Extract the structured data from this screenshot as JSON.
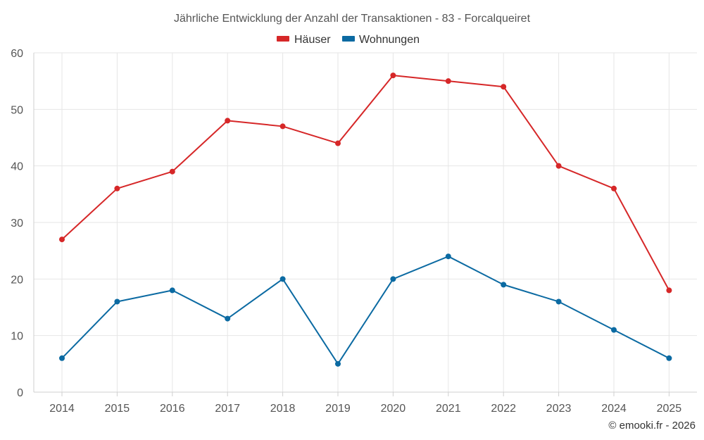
{
  "chart_data": {
    "type": "line",
    "title": "Jährliche Entwicklung der Anzahl der Transaktionen - 83 - Forcalqueiret",
    "xlabel": "",
    "ylabel": "",
    "categories": [
      "2014",
      "2015",
      "2016",
      "2017",
      "2018",
      "2019",
      "2020",
      "2021",
      "2022",
      "2023",
      "2024",
      "2025"
    ],
    "ylim": [
      0,
      60
    ],
    "yticks": [
      0,
      10,
      20,
      30,
      40,
      50,
      60
    ],
    "grid": true,
    "legend_position": "top-center",
    "series": [
      {
        "name": "Häuser",
        "color": "#d62728",
        "values": [
          27,
          36,
          39,
          48,
          47,
          44,
          56,
          55,
          54,
          40,
          36,
          18
        ]
      },
      {
        "name": "Wohnungen",
        "color": "#0b6aa2",
        "values": [
          6,
          16,
          18,
          13,
          20,
          5,
          20,
          24,
          19,
          16,
          11,
          6
        ]
      }
    ]
  },
  "credit": "© emooki.fr - 2026"
}
